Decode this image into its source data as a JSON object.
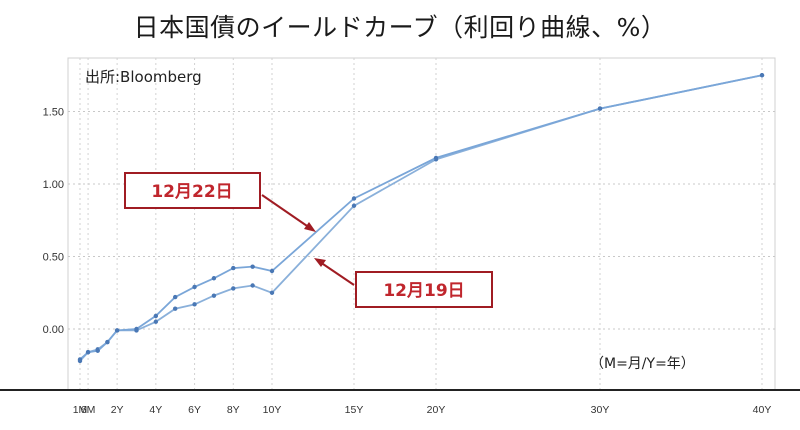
{
  "chart_title": "日本国債のイールドカーブ（利回り曲線、%）",
  "chart_data": {
    "type": "line",
    "title": "日本国債のイールドカーブ（利回り曲線、%）",
    "source": "出所:Bloomberg",
    "unit_note": "（M=月/Y=年）",
    "x_ticks": [
      "1M",
      "6M",
      "2Y",
      "4Y",
      "6Y",
      "8Y",
      "10Y",
      "15Y",
      "20Y",
      "30Y",
      "40Y"
    ],
    "x_tick_years": [
      0.083,
      0.5,
      2,
      4,
      6,
      8,
      10,
      15,
      20,
      30,
      40
    ],
    "y_ticks": [
      "0.00",
      "0.50",
      "1.00",
      "1.50"
    ],
    "y_tick_values": [
      0,
      0.5,
      1.0,
      1.5
    ],
    "ylim": [
      -0.4,
      1.85
    ],
    "grid": true,
    "series": [
      {
        "name": "12月22日",
        "color": "#7aa6d8",
        "x": [
          0.083,
          0.5,
          1,
          1.5,
          2,
          3,
          4,
          5,
          6,
          7,
          8,
          9,
          10,
          15,
          20,
          30,
          40
        ],
        "y": [
          -0.21,
          -0.16,
          -0.15,
          -0.09,
          -0.01,
          0.0,
          0.09,
          0.22,
          0.29,
          0.35,
          0.42,
          0.43,
          0.4,
          0.9,
          1.18,
          1.52,
          1.75
        ]
      },
      {
        "name": "12月19日",
        "color": "#8ab0da",
        "x": [
          0.083,
          0.5,
          1,
          1.5,
          2,
          3,
          4,
          5,
          6,
          7,
          8,
          9,
          10,
          15,
          20,
          30,
          40
        ],
        "y": [
          -0.22,
          -0.16,
          -0.14,
          -0.09,
          -0.01,
          -0.01,
          0.05,
          0.14,
          0.17,
          0.23,
          0.28,
          0.3,
          0.25,
          0.85,
          1.17,
          1.52,
          1.75
        ]
      }
    ],
    "annotations": [
      {
        "label": "12月22日",
        "color": "#c0262d"
      },
      {
        "label": "12月19日",
        "color": "#c0262d"
      }
    ]
  }
}
